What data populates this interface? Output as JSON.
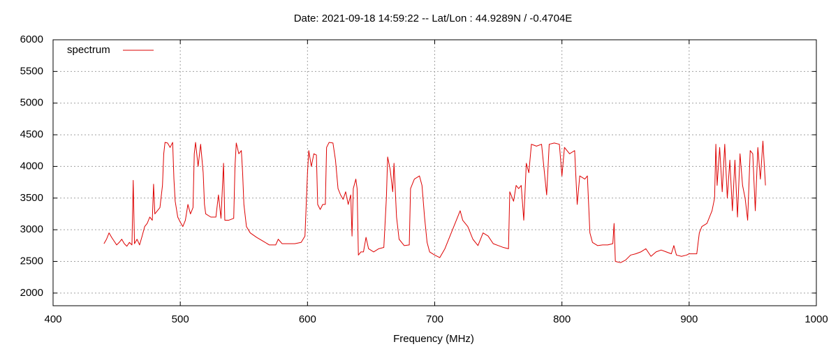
{
  "chart_data": {
    "type": "line",
    "title": "Date: 2021-09-18 14:59:22  --  Lat/Lon : 44.9289N / -0.4704E",
    "x_label": "Frequency (MHz)",
    "xlim": [
      400,
      1000
    ],
    "xticks": [
      400,
      500,
      600,
      700,
      800,
      900,
      1000
    ],
    "ylim": [
      1800,
      6000
    ],
    "yticks": [
      2000,
      2500,
      3000,
      3500,
      4000,
      4500,
      5000,
      5500,
      6000
    ],
    "grid": true,
    "legend": "top-left",
    "x": [
      440,
      442,
      444,
      446,
      448,
      450,
      452,
      454,
      456,
      458,
      460,
      462,
      463,
      464,
      466,
      468,
      470,
      472,
      474,
      476,
      478,
      479,
      480,
      482,
      484,
      486,
      487,
      488,
      490,
      492,
      494,
      495,
      496,
      498,
      500,
      502,
      504,
      506,
      508,
      510,
      511,
      512,
      514,
      516,
      518,
      519,
      520,
      524,
      528,
      530,
      532,
      534,
      535,
      538,
      542,
      543,
      544,
      546,
      548,
      549,
      550,
      552,
      555,
      560,
      565,
      570,
      575,
      577,
      580,
      585,
      590,
      595,
      598,
      600,
      601,
      603,
      605,
      607,
      608,
      610,
      612,
      614,
      615,
      617,
      620,
      622,
      624,
      626,
      628,
      630,
      632,
      634,
      635,
      636,
      638,
      639,
      640,
      642,
      644,
      646,
      648,
      652,
      656,
      660,
      662,
      663,
      665,
      667,
      668,
      670,
      672,
      676,
      680,
      681,
      684,
      688,
      690,
      692,
      694,
      696,
      700,
      704,
      708,
      712,
      716,
      720,
      722,
      726,
      730,
      734,
      738,
      742,
      746,
      750,
      754,
      758,
      759,
      762,
      764,
      766,
      768,
      770,
      772,
      774,
      776,
      780,
      784,
      786,
      788,
      790,
      794,
      798,
      800,
      802,
      806,
      810,
      812,
      814,
      818,
      820,
      822,
      824,
      828,
      832,
      836,
      840,
      841,
      842,
      846,
      850,
      854,
      858,
      862,
      866,
      870,
      874,
      878,
      882,
      886,
      888,
      890,
      894,
      898,
      900,
      902,
      906,
      908,
      910,
      914,
      918,
      920,
      921,
      922,
      924,
      926,
      928,
      930,
      932,
      934,
      936,
      938,
      940,
      942,
      944,
      946,
      948,
      950,
      952,
      954,
      956,
      958,
      960
    ],
    "series": [
      {
        "name": "spectrum",
        "color": "#dd0000",
        "values": [
          2780,
          2850,
          2950,
          2880,
          2820,
          2760,
          2800,
          2850,
          2780,
          2740,
          2800,
          2760,
          3780,
          2780,
          2850,
          2760,
          2900,
          3050,
          3100,
          3200,
          3150,
          3720,
          3250,
          3300,
          3350,
          3700,
          4200,
          4380,
          4370,
          4300,
          4380,
          3800,
          3450,
          3200,
          3120,
          3050,
          3150,
          3400,
          3250,
          3350,
          4200,
          4380,
          4000,
          4350,
          3900,
          3400,
          3250,
          3200,
          3200,
          3550,
          3180,
          4050,
          3150,
          3150,
          3180,
          4000,
          4370,
          4200,
          4250,
          3900,
          3400,
          3050,
          2950,
          2880,
          2820,
          2760,
          2760,
          2850,
          2780,
          2780,
          2780,
          2800,
          2900,
          3900,
          4250,
          4000,
          4200,
          4180,
          3400,
          3320,
          3400,
          3400,
          4300,
          4380,
          4370,
          4100,
          3650,
          3550,
          3480,
          3600,
          3400,
          3550,
          2900,
          3650,
          3800,
          3650,
          2600,
          2650,
          2650,
          2880,
          2700,
          2650,
          2700,
          2720,
          3500,
          4150,
          3950,
          3600,
          4050,
          3200,
          2850,
          2750,
          2760,
          3650,
          3800,
          3850,
          3700,
          3200,
          2800,
          2650,
          2600,
          2560,
          2700,
          2900,
          3100,
          3300,
          3150,
          3050,
          2850,
          2750,
          2950,
          2900,
          2780,
          2750,
          2720,
          2700,
          3600,
          3450,
          3700,
          3650,
          3700,
          3150,
          4050,
          3900,
          4350,
          4320,
          4350,
          3950,
          3550,
          4350,
          4370,
          4350,
          3850,
          4300,
          4200,
          4250,
          3400,
          3850,
          3800,
          3850,
          2950,
          2800,
          2750,
          2760,
          2760,
          2780,
          3100,
          2500,
          2480,
          2520,
          2600,
          2620,
          2650,
          2700,
          2580,
          2650,
          2680,
          2650,
          2620,
          2750,
          2600,
          2580,
          2600,
          2620,
          2620,
          2620,
          2950,
          3050,
          3100,
          3300,
          3500,
          4350,
          3700,
          4300,
          3600,
          4350,
          3500,
          4100,
          3300,
          4100,
          3200,
          4200,
          3700,
          3500,
          3150,
          4250,
          4200,
          3300,
          4300,
          3800,
          4400,
          3700
        ]
      }
    ]
  }
}
